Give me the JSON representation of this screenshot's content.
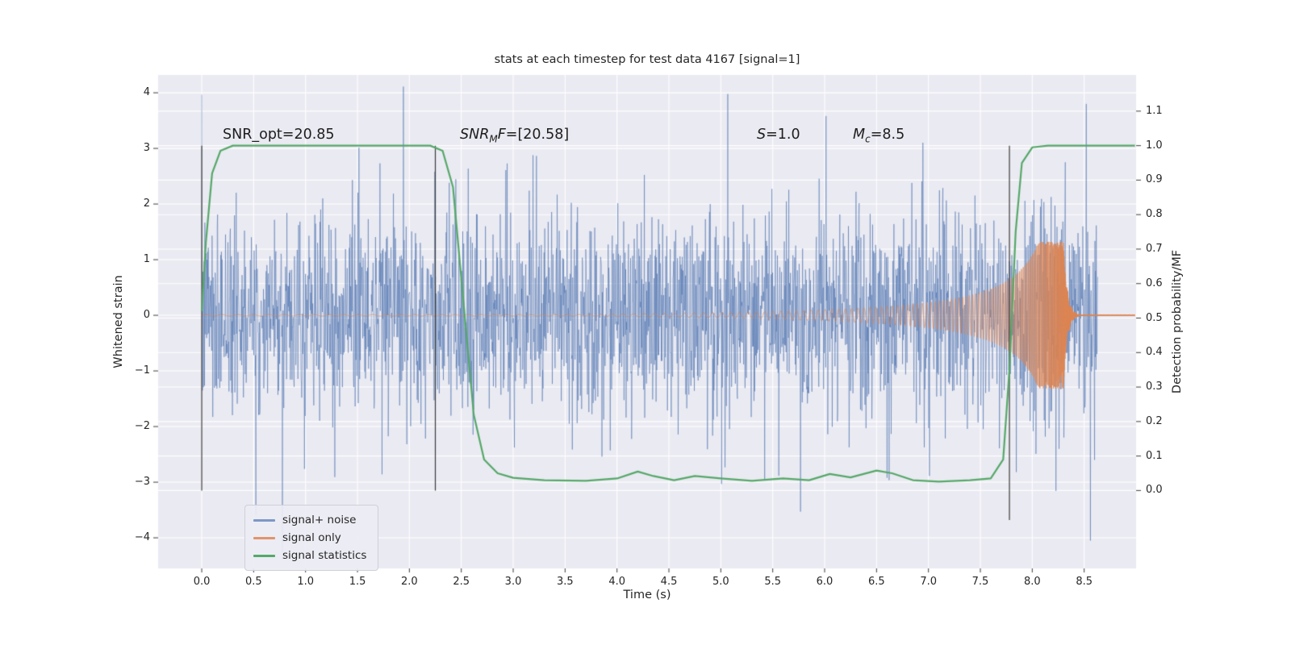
{
  "title": "stats at each timestep for test data 4167 [signal=1]",
  "axes": {
    "left": {
      "label": "Whitened strain"
    },
    "right": {
      "label": "Detection probability/MF"
    },
    "x": {
      "label": "Time (s)"
    }
  },
  "annotations": {
    "snr_opt": {
      "text": "SNR_opt=20.85"
    },
    "snr_mf": {
      "pre": "SNR",
      "sub": "M",
      "mid": "F",
      "post": "=[20.58]"
    },
    "s": {
      "pre": "S",
      "post": "=1.0"
    },
    "mc": {
      "pre": "M",
      "sub": "c",
      "post": "=8.5"
    }
  },
  "legend": {
    "items": [
      {
        "label": "signal+ noise"
      },
      {
        "label": "signal only"
      },
      {
        "label": "signal statistics"
      }
    ]
  },
  "colors": {
    "background": "#ffffff",
    "panel": "#eaeaf2",
    "grid": "#ffffff",
    "text": "#262626",
    "tick": "#3d3d3d",
    "vline": "#3a3a3a"
  },
  "chart_data": {
    "type": "line",
    "title": "stats at each timestep for test data 4167 [signal=1]",
    "xlabel": "Time (s)",
    "ylabel_left": "Whitened strain",
    "ylabel_right": "Detection probability/MF",
    "xlim": [
      -0.42,
      9.0
    ],
    "ylim_left": [
      -4.55,
      4.32
    ],
    "right_axis_map": {
      "p0_strain": -3.15,
      "p1_strain": 3.05
    },
    "x_ticks": [
      0.0,
      0.5,
      1.0,
      1.5,
      2.0,
      2.5,
      3.0,
      3.5,
      4.0,
      4.5,
      5.0,
      5.5,
      6.0,
      6.5,
      7.0,
      7.5,
      8.0,
      8.5
    ],
    "x_tick_labels": [
      "0.0",
      "0.5",
      "1.0",
      "1.5",
      "2.0",
      "2.5",
      "3.0",
      "3.5",
      "4.0",
      "4.5",
      "5.0",
      "5.5",
      "6.0",
      "6.5",
      "7.0",
      "7.5",
      "8.0",
      "8.5"
    ],
    "left_ticks": [
      4,
      3,
      2,
      1,
      0,
      -1,
      -2,
      -3,
      -4
    ],
    "left_tick_labels": [
      "4",
      "3",
      "2",
      "1",
      "0",
      "−1",
      "−2",
      "−3",
      "−4"
    ],
    "right_ticks": [
      1.1,
      1.0,
      0.9,
      0.8,
      0.7,
      0.6,
      0.5,
      0.4,
      0.3,
      0.2,
      0.1,
      0.0
    ],
    "right_tick_labels": [
      "1.1",
      "1.0",
      "0.9",
      "0.8",
      "0.7",
      "0.6",
      "0.5",
      "0.4",
      "0.3",
      "0.2",
      "0.1",
      "0.0"
    ],
    "grid": true,
    "legend_position": "lower left",
    "series": [
      {
        "name": "signal+ noise",
        "kind": "noise_plus_signal",
        "color": "rgba(76,114,176,0.7)",
        "t_range": [
          0.0,
          8.63
        ],
        "n": 2600,
        "noise_sd": 0.85,
        "outlier_frac": 0.03,
        "outlier_sd": 1.7,
        "seed": 7,
        "forced_points": [
          [
            8.52,
            3.8
          ],
          [
            8.56,
            -4.05
          ],
          [
            8.6,
            -2.6
          ]
        ]
      },
      {
        "name": "signal only",
        "kind": "chirp",
        "color": "rgba(221,132,82,0.85)",
        "t_range": [
          0.0,
          8.99
        ],
        "n": 9000,
        "amp_A": 0.42,
        "amp_offset": 0.075,
        "amp_floor": 0.012,
        "amp_cap": 1.32,
        "tc_amp": 8.36,
        "t_ring": 8.3,
        "ring_tau": 0.035,
        "f0": 3,
        "f1": 29,
        "tc_freq": 8.42
      },
      {
        "name": "signal statistics",
        "kind": "keypoints_probability",
        "color": "#55A868",
        "points": [
          [
            0.0,
            0.52
          ],
          [
            0.04,
            0.72
          ],
          [
            0.1,
            0.92
          ],
          [
            0.18,
            0.985
          ],
          [
            0.3,
            1.0
          ],
          [
            2.2,
            1.0
          ],
          [
            2.32,
            0.985
          ],
          [
            2.42,
            0.88
          ],
          [
            2.52,
            0.55
          ],
          [
            2.62,
            0.22
          ],
          [
            2.72,
            0.09
          ],
          [
            2.85,
            0.05
          ],
          [
            3.0,
            0.037
          ],
          [
            3.3,
            0.03
          ],
          [
            3.7,
            0.028
          ],
          [
            4.0,
            0.035
          ],
          [
            4.2,
            0.055
          ],
          [
            4.35,
            0.042
          ],
          [
            4.55,
            0.03
          ],
          [
            4.75,
            0.042
          ],
          [
            5.0,
            0.035
          ],
          [
            5.3,
            0.028
          ],
          [
            5.6,
            0.035
          ],
          [
            5.85,
            0.03
          ],
          [
            6.05,
            0.048
          ],
          [
            6.25,
            0.038
          ],
          [
            6.5,
            0.058
          ],
          [
            6.65,
            0.05
          ],
          [
            6.85,
            0.03
          ],
          [
            7.1,
            0.026
          ],
          [
            7.4,
            0.03
          ],
          [
            7.6,
            0.035
          ],
          [
            7.72,
            0.09
          ],
          [
            7.78,
            0.35
          ],
          [
            7.84,
            0.75
          ],
          [
            7.9,
            0.95
          ],
          [
            8.0,
            0.995
          ],
          [
            8.15,
            1.0
          ],
          [
            8.99,
            1.0
          ]
        ]
      }
    ],
    "vlines": [
      {
        "t": 0.0,
        "s0": -3.15,
        "s1": 3.05
      },
      {
        "t": 2.25,
        "s0": -3.15,
        "s1": 3.05
      },
      {
        "t": 7.78,
        "s0": -3.68,
        "s1": 3.05
      }
    ],
    "annotations": [
      {
        "text": "SNR_opt=20.85",
        "t": 0.2,
        "strain": 3.2
      },
      {
        "text": "SNR_MF=[20.58]",
        "t": 2.5,
        "strain": 3.2
      },
      {
        "text": "S=1.0",
        "t": 5.35,
        "strain": 3.2
      },
      {
        "text": "M_c=8.5",
        "t": 6.27,
        "strain": 3.2
      }
    ]
  }
}
